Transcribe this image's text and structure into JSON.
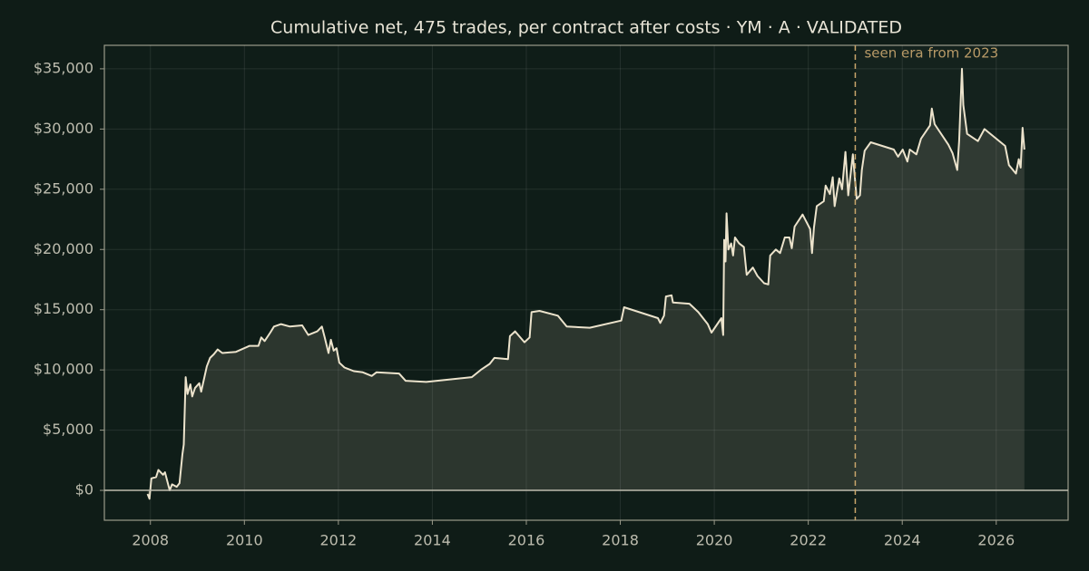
{
  "chart_data": {
    "type": "line",
    "title": "Cumulative net, 475 trades, per contract after costs  ·  YM · A · VALIDATED",
    "xlim": [
      2007.02,
      2027.53
    ],
    "ylim": [
      -2480,
      36950
    ],
    "xticks": [
      2008,
      2010,
      2012,
      2014,
      2016,
      2018,
      2020,
      2022,
      2024,
      2026
    ],
    "yticks": [
      {
        "value": 0,
        "label": "$0"
      },
      {
        "value": 5000,
        "label": "$5,000"
      },
      {
        "value": 10000,
        "label": "$10,000"
      },
      {
        "value": 15000,
        "label": "$15,000"
      },
      {
        "value": 20000,
        "label": "$20,000"
      },
      {
        "value": 25000,
        "label": "$25,000"
      },
      {
        "value": 30000,
        "label": "$30,000"
      },
      {
        "value": 35000,
        "label": "$35,000"
      }
    ],
    "grid": true,
    "annotation": {
      "x": 2023,
      "text": "seen era from 2023",
      "color": "#c9a66b"
    },
    "series": [
      {
        "color": "#ece3cc",
        "fill": "rgba(236,227,204,0.13)",
        "x": [
          2007.94,
          2007.98,
          2008.02,
          2008.12,
          2008.17,
          2008.27,
          2008.31,
          2008.41,
          2008.46,
          2008.56,
          2008.62,
          2008.68,
          2008.71,
          2008.75,
          2008.79,
          2008.85,
          2008.89,
          2008.95,
          2009.04,
          2009.08,
          2009.2,
          2009.27,
          2009.35,
          2009.43,
          2009.53,
          2009.82,
          2010.11,
          2010.3,
          2010.36,
          2010.43,
          2010.55,
          2010.63,
          2010.78,
          2010.97,
          2011.23,
          2011.36,
          2011.55,
          2011.65,
          2011.71,
          2011.79,
          2011.84,
          2011.9,
          2011.96,
          2012.02,
          2012.13,
          2012.33,
          2012.52,
          2012.71,
          2012.81,
          2013.29,
          2013.43,
          2013.87,
          2014.84,
          2015.03,
          2015.22,
          2015.32,
          2015.61,
          2015.65,
          2015.76,
          2015.96,
          2016.07,
          2016.11,
          2016.28,
          2016.67,
          2016.86,
          2017.35,
          2018.02,
          2018.08,
          2018.8,
          2018.85,
          2018.93,
          2018.97,
          2019.09,
          2019.12,
          2019.47,
          2019.66,
          2019.86,
          2019.94,
          2020.15,
          2020.19,
          2020.21,
          2020.24,
          2020.26,
          2020.3,
          2020.36,
          2020.4,
          2020.44,
          2020.53,
          2020.63,
          2020.69,
          2020.82,
          2020.92,
          2021.06,
          2021.15,
          2021.19,
          2021.31,
          2021.4,
          2021.5,
          2021.6,
          2021.65,
          2021.71,
          2021.88,
          2022.04,
          2022.08,
          2022.12,
          2022.18,
          2022.33,
          2022.37,
          2022.46,
          2022.52,
          2022.56,
          2022.66,
          2022.72,
          2022.79,
          2022.85,
          2022.95,
          2023.03,
          2023.1,
          2023.14,
          2023.2,
          2023.33,
          2023.82,
          2023.91,
          2024.01,
          2024.11,
          2024.16,
          2024.3,
          2024.4,
          2024.59,
          2024.63,
          2024.69,
          2024.98,
          2025.07,
          2025.17,
          2025.21,
          2025.27,
          2025.3,
          2025.38,
          2025.61,
          2025.75,
          2026.19,
          2026.27,
          2026.42,
          2026.48,
          2026.52,
          2026.56,
          2026.6
        ],
        "values": [
          -300,
          -700,
          1000,
          1100,
          1700,
          1300,
          1500,
          0,
          500,
          300,
          600,
          3000,
          3800,
          9400,
          8000,
          8800,
          7800,
          8500,
          8900,
          8200,
          10300,
          11000,
          11300,
          11700,
          11400,
          11500,
          12000,
          12000,
          12700,
          12400,
          13100,
          13600,
          13800,
          13600,
          13700,
          12900,
          13200,
          13600,
          12700,
          11400,
          12500,
          11600,
          11800,
          10600,
          10200,
          9900,
          9800,
          9500,
          9800,
          9700,
          9100,
          9000,
          9400,
          10000,
          10500,
          11000,
          10900,
          12800,
          13200,
          12300,
          12700,
          14800,
          14900,
          14500,
          13600,
          13500,
          14100,
          15200,
          14300,
          13900,
          14500,
          16100,
          16200,
          15600,
          15500,
          14800,
          13800,
          13100,
          14300,
          12900,
          20800,
          19000,
          23000,
          20000,
          20500,
          19500,
          21000,
          20500,
          20200,
          17900,
          18500,
          17800,
          17200,
          17100,
          19500,
          20000,
          19700,
          21000,
          21000,
          20100,
          21900,
          22900,
          21700,
          19700,
          21800,
          23600,
          24000,
          25300,
          24600,
          26000,
          23600,
          25900,
          25000,
          28100,
          24500,
          27900,
          24200,
          24500,
          26600,
          28200,
          28900,
          28300,
          27700,
          28300,
          27300,
          28300,
          27900,
          29200,
          30300,
          31700,
          30400,
          28700,
          28000,
          26600,
          29000,
          35000,
          32000,
          29600,
          29000,
          30000,
          28600,
          27000,
          26300,
          27500,
          26800,
          30100,
          28300
        ]
      }
    ]
  }
}
